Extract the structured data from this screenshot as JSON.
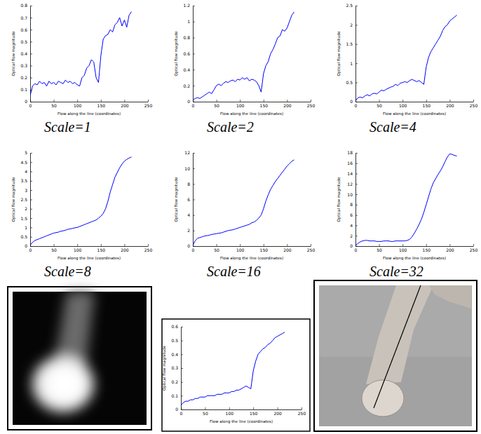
{
  "chart_data": [
    {
      "type": "line",
      "title": "Scale=1",
      "x_label": "Flow along the line (coordinates)",
      "y_label": "Optical flow magnitude",
      "x": [
        0,
        5,
        10,
        15,
        20,
        25,
        30,
        35,
        40,
        45,
        50,
        55,
        60,
        65,
        70,
        75,
        80,
        85,
        90,
        95,
        100,
        105,
        110,
        115,
        120,
        125,
        130,
        135,
        140,
        145,
        150,
        155,
        160,
        165,
        170,
        175,
        180,
        185,
        190,
        195,
        200,
        205,
        210,
        215
      ],
      "series": [
        {
          "color": "#0000ff",
          "values": [
            0.05,
            0.13,
            0.15,
            0.14,
            0.17,
            0.15,
            0.16,
            0.13,
            0.17,
            0.15,
            0.16,
            0.14,
            0.17,
            0.16,
            0.15,
            0.18,
            0.16,
            0.17,
            0.15,
            0.16,
            0.14,
            0.13,
            0.2,
            0.22,
            0.28,
            0.3,
            0.35,
            0.33,
            0.2,
            0.16,
            0.38,
            0.52,
            0.55,
            0.56,
            0.6,
            0.58,
            0.64,
            0.66,
            0.7,
            0.63,
            0.68,
            0.62,
            0.72,
            0.75
          ]
        }
      ],
      "xlim": [
        0,
        250
      ],
      "xticks": [
        0,
        50,
        100,
        150,
        200,
        250
      ],
      "ylim": [
        0,
        0.8
      ],
      "yticks": [
        0,
        0.1,
        0.2,
        0.3,
        0.4,
        0.5,
        0.6,
        0.7,
        0.8
      ]
    },
    {
      "type": "line",
      "title": "Scale=2",
      "x_label": "Flow along the line (coordinates)",
      "y_label": "Optical flow magnitude",
      "x": [
        0,
        5,
        10,
        15,
        20,
        25,
        30,
        35,
        40,
        45,
        50,
        55,
        60,
        65,
        70,
        75,
        80,
        85,
        90,
        95,
        100,
        105,
        110,
        115,
        120,
        125,
        130,
        135,
        140,
        145,
        150,
        155,
        160,
        165,
        170,
        175,
        180,
        185,
        190,
        195,
        200,
        205,
        210,
        215
      ],
      "series": [
        {
          "color": "#0000ff",
          "values": [
            0.02,
            0.04,
            0.05,
            0.04,
            0.06,
            0.08,
            0.1,
            0.12,
            0.1,
            0.15,
            0.2,
            0.22,
            0.2,
            0.23,
            0.25,
            0.24,
            0.26,
            0.27,
            0.25,
            0.28,
            0.27,
            0.3,
            0.28,
            0.3,
            0.26,
            0.28,
            0.27,
            0.25,
            0.2,
            0.12,
            0.35,
            0.45,
            0.5,
            0.6,
            0.65,
            0.72,
            0.8,
            0.82,
            0.9,
            0.88,
            0.92,
            1.0,
            1.08,
            1.12
          ]
        }
      ],
      "xlim": [
        0,
        250
      ],
      "xticks": [
        0,
        50,
        100,
        150,
        200,
        250
      ],
      "ylim": [
        0,
        1.2
      ],
      "yticks": [
        0,
        0.2,
        0.4,
        0.6,
        0.8,
        1,
        1.2
      ]
    },
    {
      "type": "line",
      "title": "Scale=4",
      "x_label": "Flow along the line (coordinates)",
      "y_label": "Optical flow magnitude",
      "x": [
        0,
        5,
        10,
        15,
        20,
        25,
        30,
        35,
        40,
        45,
        50,
        55,
        60,
        65,
        70,
        75,
        80,
        85,
        90,
        95,
        100,
        105,
        110,
        115,
        120,
        125,
        130,
        135,
        140,
        145,
        150,
        155,
        160,
        165,
        170,
        175,
        180,
        185,
        190,
        195,
        200,
        205,
        210,
        215
      ],
      "series": [
        {
          "color": "#0000ff",
          "values": [
            0.02,
            0.1,
            0.12,
            0.1,
            0.15,
            0.18,
            0.15,
            0.2,
            0.22,
            0.2,
            0.25,
            0.3,
            0.28,
            0.32,
            0.35,
            0.38,
            0.4,
            0.45,
            0.42,
            0.48,
            0.5,
            0.52,
            0.5,
            0.55,
            0.58,
            0.55,
            0.52,
            0.55,
            0.5,
            0.45,
            0.9,
            1.15,
            1.3,
            1.4,
            1.5,
            1.6,
            1.7,
            1.85,
            1.95,
            2.0,
            2.1,
            2.15,
            2.2,
            2.25
          ]
        }
      ],
      "xlim": [
        0,
        250
      ],
      "xticks": [
        0,
        50,
        100,
        150,
        200,
        250
      ],
      "ylim": [
        0,
        2.5
      ],
      "yticks": [
        0,
        0.5,
        1,
        1.5,
        2,
        2.5
      ]
    },
    {
      "type": "line",
      "title": "Scale=8",
      "x_label": "Flow along the line (coordinates)",
      "y_label": "Optical flow magnitude",
      "x": [
        0,
        5,
        10,
        15,
        20,
        25,
        30,
        35,
        40,
        45,
        50,
        55,
        60,
        65,
        70,
        75,
        80,
        85,
        90,
        95,
        100,
        105,
        110,
        115,
        120,
        125,
        130,
        135,
        140,
        145,
        150,
        155,
        160,
        165,
        170,
        175,
        180,
        185,
        190,
        195,
        200,
        205,
        210,
        215
      ],
      "series": [
        {
          "color": "#0000ff",
          "values": [
            0.05,
            0.2,
            0.3,
            0.35,
            0.4,
            0.45,
            0.5,
            0.55,
            0.6,
            0.65,
            0.7,
            0.72,
            0.75,
            0.8,
            0.82,
            0.85,
            0.9,
            0.92,
            0.95,
            0.98,
            1.0,
            1.05,
            1.1,
            1.15,
            1.2,
            1.25,
            1.3,
            1.35,
            1.4,
            1.5,
            1.6,
            1.75,
            2.0,
            2.4,
            2.9,
            3.3,
            3.7,
            3.95,
            4.2,
            4.4,
            4.55,
            4.65,
            4.72,
            4.78
          ]
        }
      ],
      "xlim": [
        0,
        250
      ],
      "xticks": [
        0,
        50,
        100,
        150,
        200,
        250
      ],
      "ylim": [
        0,
        5
      ],
      "yticks": [
        0,
        0.5,
        1,
        1.5,
        2,
        2.5,
        3,
        3.5,
        4,
        4.5,
        5
      ]
    },
    {
      "type": "line",
      "title": "Scale=16",
      "x_label": "Flow along the line (coordinates)",
      "y_label": "Optical flow magnitude",
      "x": [
        0,
        5,
        10,
        15,
        20,
        25,
        30,
        35,
        40,
        45,
        50,
        55,
        60,
        65,
        70,
        75,
        80,
        85,
        90,
        95,
        100,
        105,
        110,
        115,
        120,
        125,
        130,
        135,
        140,
        145,
        150,
        155,
        160,
        165,
        170,
        175,
        180,
        185,
        190,
        195,
        200,
        205,
        210,
        215
      ],
      "series": [
        {
          "color": "#0000ff",
          "values": [
            0.1,
            0.7,
            1.0,
            1.1,
            1.2,
            1.3,
            1.35,
            1.4,
            1.5,
            1.55,
            1.6,
            1.65,
            1.7,
            1.8,
            1.9,
            2.0,
            2.05,
            2.1,
            2.2,
            2.3,
            2.4,
            2.5,
            2.6,
            2.7,
            2.8,
            3.0,
            3.1,
            3.3,
            3.6,
            4.0,
            4.8,
            5.8,
            6.6,
            7.3,
            7.8,
            8.3,
            8.7,
            9.1,
            9.5,
            9.9,
            10.3,
            10.6,
            10.9,
            11.1
          ]
        }
      ],
      "xlim": [
        0,
        250
      ],
      "xticks": [
        0,
        50,
        100,
        150,
        200,
        250
      ],
      "ylim": [
        0,
        12
      ],
      "yticks": [
        0,
        2,
        4,
        6,
        8,
        10,
        12
      ]
    },
    {
      "type": "line",
      "title": "Scale=32",
      "x_label": "Flow along the line (coordinates)",
      "y_label": "Optical flow magnitude",
      "x": [
        0,
        5,
        10,
        15,
        20,
        25,
        30,
        35,
        40,
        45,
        50,
        55,
        60,
        65,
        70,
        75,
        80,
        85,
        90,
        95,
        100,
        105,
        110,
        115,
        120,
        125,
        130,
        135,
        140,
        145,
        150,
        155,
        160,
        165,
        170,
        175,
        180,
        185,
        190,
        195,
        200,
        205,
        210,
        215
      ],
      "series": [
        {
          "color": "#0000ff",
          "values": [
            0.1,
            0.5,
            0.8,
            1.0,
            1.1,
            1.1,
            1.0,
            1.0,
            1.0,
            0.9,
            0.9,
            0.9,
            1.0,
            1.0,
            1.0,
            0.9,
            0.9,
            1.0,
            1.0,
            1.0,
            1.0,
            1.0,
            1.1,
            1.3,
            1.8,
            2.5,
            3.3,
            4.2,
            5.2,
            6.5,
            8.0,
            9.5,
            11.0,
            12.2,
            13.0,
            13.8,
            14.5,
            15.3,
            16.3,
            17.2,
            17.8,
            17.7,
            17.5,
            17.4
          ]
        }
      ],
      "xlim": [
        0,
        250
      ],
      "xticks": [
        0,
        50,
        100,
        150,
        200,
        250
      ],
      "ylim": [
        0,
        18
      ],
      "yticks": [
        0,
        2,
        4,
        6,
        8,
        10,
        12,
        14,
        16,
        18
      ]
    },
    {
      "type": "line",
      "x_label": "Flow along the line (coordinates)",
      "y_label": "Optical flow magnitude",
      "x": [
        0,
        5,
        10,
        15,
        20,
        25,
        30,
        35,
        40,
        45,
        50,
        55,
        60,
        65,
        70,
        75,
        80,
        85,
        90,
        95,
        100,
        105,
        110,
        115,
        120,
        125,
        130,
        135,
        140,
        145,
        150,
        155,
        160,
        165,
        170,
        175,
        180,
        185,
        190,
        195,
        200,
        205,
        210,
        215
      ],
      "series": [
        {
          "color": "#0000ff",
          "values": [
            0.03,
            0.05,
            0.06,
            0.06,
            0.07,
            0.07,
            0.08,
            0.08,
            0.09,
            0.09,
            0.09,
            0.1,
            0.1,
            0.1,
            0.1,
            0.11,
            0.11,
            0.11,
            0.12,
            0.12,
            0.12,
            0.13,
            0.13,
            0.14,
            0.14,
            0.15,
            0.16,
            0.17,
            0.16,
            0.15,
            0.28,
            0.35,
            0.4,
            0.42,
            0.44,
            0.45,
            0.47,
            0.48,
            0.5,
            0.52,
            0.53,
            0.54,
            0.55,
            0.56
          ]
        }
      ],
      "xlim": [
        0,
        250
      ],
      "xticks": [
        0,
        50,
        100,
        150,
        200,
        250
      ],
      "ylim": [
        0,
        0.6
      ],
      "yticks": [
        0,
        0.1,
        0.2,
        0.3,
        0.4,
        0.5,
        0.6
      ]
    }
  ]
}
